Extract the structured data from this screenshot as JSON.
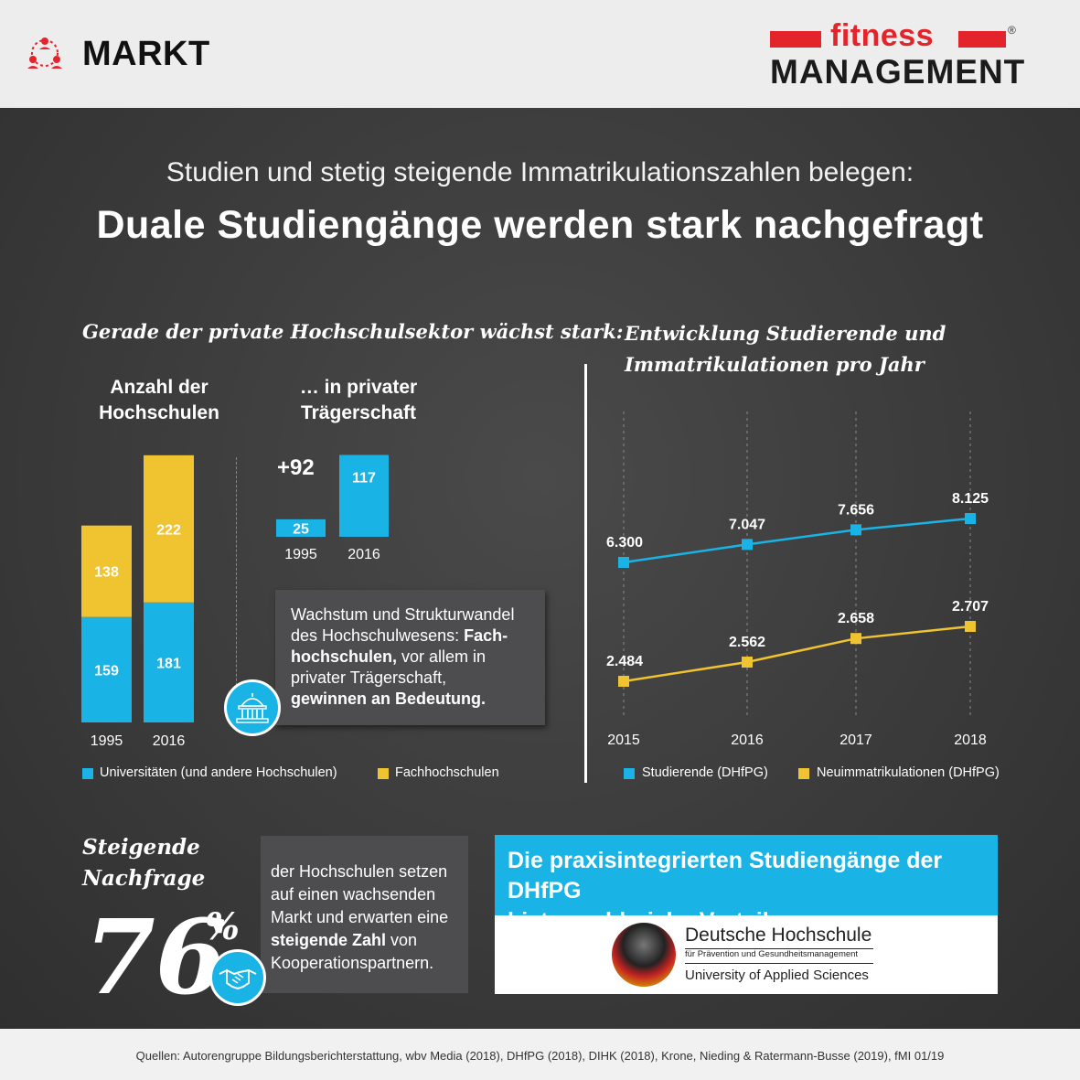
{
  "header": {
    "section_label": "MARKT",
    "brand_top": "fitness",
    "brand_bottom": "MANAGEMENT",
    "brand_reg": "®",
    "colors": {
      "brand_red": "#e3242b"
    }
  },
  "intro": {
    "subtitle": "Studien und stetig steigende Immatrikulationszahlen belegen:",
    "title": "Duale Studiengänge werden stark nachgefragt"
  },
  "left_section": {
    "heading": "Gerade der private Hochschulsektor wächst stark:",
    "col1_head_line1": "Anzahl der",
    "col1_head_line2": "Hochschulen",
    "col2_head_line1": "… in privater",
    "col2_head_line2": "Trägerschaft",
    "increase_label": "+92",
    "info_box": {
      "line1": "Wachstum und Strukturwandel",
      "line2": "des Hochschulwesens:",
      "line2_bold": "Fach-",
      "line3_bold": "hochschulen,",
      "line3": "vor allem in",
      "line4": "privater Trägerschaft,",
      "line5_bold": "gewinnen an Bedeutung."
    },
    "icons": {
      "university": "university-building-icon"
    }
  },
  "right_section": {
    "heading_line1": "Entwicklung Studierende und",
    "heading_line2": "Immatrikulationen pro Jahr"
  },
  "bottom": {
    "nachfrage_line1": "Steigende",
    "nachfrage_line2": "Nachfrage",
    "big_number": "76",
    "percent_sign": "%",
    "nach_text_1": "der Hochschulen setzen",
    "nach_text_2": "auf einen wachsenden",
    "nach_text_3": "Markt und erwarten eine",
    "nach_text_4_bold": "steigende Zahl",
    "nach_text_4": "von",
    "nach_text_5": "Kooperationspartnern.",
    "icons": {
      "handshake": "handshake-icon"
    },
    "dh_head_line1": "Die praxisintegrierten Studiengänge der DHfPG",
    "dh_head_line2": "bieten zahlreiche Vorteile",
    "dh_name": "Deutsche Hochschule",
    "dh_sub": "für Prävention und Gesundheitsmanagement",
    "dh_uni": "University of Applied Sciences"
  },
  "footer": {
    "sources": "Quellen: Autorengruppe Bildungsberichterstattung, wbv Media (2018), DHfPG (2018), DIHK (2018),  Krone, Nieding & Ratermann-Busse (2019), fMI 01/19"
  },
  "chart_data": [
    {
      "type": "bar",
      "stacked": true,
      "title": "Anzahl der Hochschulen",
      "categories": [
        "1995",
        "2016"
      ],
      "series": [
        {
          "name": "Universitäten (und andere Hochschulen)",
          "values": [
            159,
            181
          ],
          "color": "#1ab3e6"
        },
        {
          "name": "Fachhochschulen",
          "values": [
            138,
            222
          ],
          "color": "#f0c330"
        }
      ],
      "legend": "bottom"
    },
    {
      "type": "bar",
      "title": "… in privater Trägerschaft",
      "categories": [
        "1995",
        "2016"
      ],
      "series": [
        {
          "name": "",
          "values": [
            25,
            117
          ],
          "color": "#1ab3e6"
        }
      ],
      "annotation": "+92"
    },
    {
      "type": "line",
      "title": "Entwicklung Studierende und Immatrikulationen pro Jahr",
      "x": [
        "2015",
        "2016",
        "2017",
        "2018"
      ],
      "series": [
        {
          "name": "Studierende (DHfPG)",
          "values": [
            6300,
            7047,
            7656,
            8125
          ],
          "labels": [
            "6.300",
            "7.047",
            "7.656",
            "8.125"
          ],
          "color": "#1ab3e6"
        },
        {
          "name": "Neuimmatrikulationen (DHfPG)",
          "values": [
            2484,
            2562,
            2658,
            2707
          ],
          "labels": [
            "2.484",
            "2.562",
            "2.658",
            "2.707"
          ],
          "color": "#f0c330"
        }
      ],
      "legend": "bottom"
    }
  ]
}
